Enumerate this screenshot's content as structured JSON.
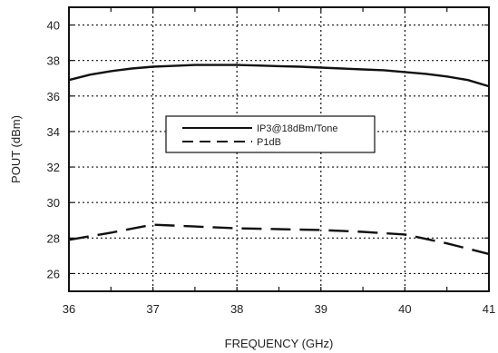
{
  "chart_data": {
    "type": "line",
    "title": "",
    "xlabel": "FREQUENCY (GHz)",
    "ylabel": "POUT (dBm)",
    "xlim": [
      36,
      41
    ],
    "ylim": [
      25,
      41
    ],
    "x_ticks": [
      36,
      37,
      38,
      39,
      40,
      41
    ],
    "y_ticks": [
      26,
      28,
      30,
      32,
      34,
      36,
      38,
      40
    ],
    "grid": true,
    "legend_position": "center",
    "series": [
      {
        "name": "IP3@18dBm/Tone",
        "style": "solid",
        "color": "#111111",
        "x": [
          36.0,
          36.25,
          36.5,
          36.75,
          37.0,
          37.25,
          37.5,
          37.75,
          38.0,
          38.25,
          38.5,
          38.75,
          39.0,
          39.25,
          39.5,
          39.75,
          40.0,
          40.25,
          40.5,
          40.75,
          41.0
        ],
        "y": [
          36.9,
          37.2,
          37.4,
          37.55,
          37.65,
          37.7,
          37.75,
          37.75,
          37.75,
          37.72,
          37.68,
          37.65,
          37.6,
          37.55,
          37.5,
          37.45,
          37.35,
          37.25,
          37.1,
          36.9,
          36.55
        ]
      },
      {
        "name": "P1dB",
        "style": "dashed",
        "color": "#111111",
        "x": [
          36.0,
          36.5,
          37.0,
          37.5,
          38.0,
          38.5,
          39.0,
          39.5,
          40.0,
          40.5,
          41.0
        ],
        "y": [
          27.9,
          28.3,
          28.75,
          28.65,
          28.55,
          28.5,
          28.45,
          28.35,
          28.2,
          27.7,
          27.1
        ]
      }
    ]
  }
}
